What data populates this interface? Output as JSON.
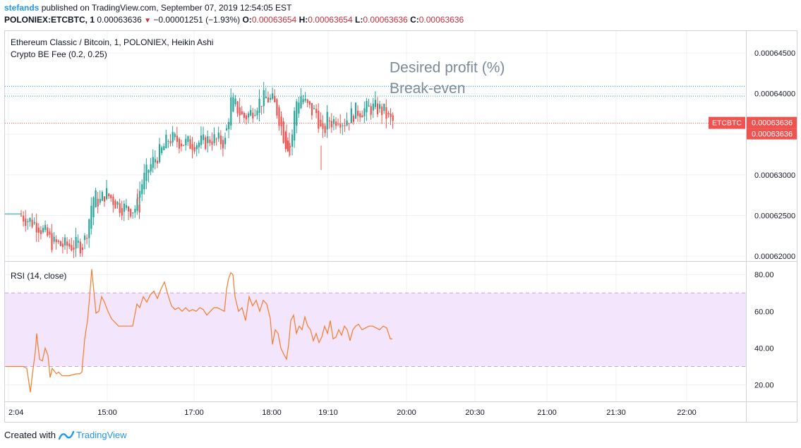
{
  "header": {
    "publisher": "stefands",
    "published_text": "published on TradingView.com, September 07, 2019 12:54:05 EST",
    "symbol": "POLONIEX:ETCBTC, 1",
    "last": "0.00063636",
    "change": "−0.00001251 (−1.93%)",
    "open_label": "O:",
    "open": "0.00063654",
    "high_label": "H:",
    "high": "0.00063654",
    "low_label": "L:",
    "low": "0.00063636",
    "close_label": "C:",
    "close": "0.00063636"
  },
  "legend": {
    "title": "Ethereum Classic / Bitcoin, 1, POLONIEX, Heikin Ashi",
    "indicator": "Crypto BE Fee (0.2, 0.25)",
    "rsi": "RSI (14, close)"
  },
  "annotations": {
    "desired_profit": "Desired profit (%)",
    "break_even": "Break-even"
  },
  "price_badges": [
    "ETCBTC",
    "0.00063636",
    "0.00063636"
  ],
  "footer": {
    "created_with": "Created with",
    "brand": "TradingView"
  },
  "colors": {
    "up": "#26a69a",
    "down": "#ef5350",
    "rsi_line": "#f57c2b",
    "rsi_band": "#f3e5fb",
    "desired_line": "#2196f3",
    "breakeven_line": "#26a69a",
    "price_line": "#ef5350",
    "grid": "#eef0f3"
  },
  "chart_data": [
    {
      "type": "candlestick",
      "style": "Heikin Ashi",
      "x_ticks": [
        "2:04",
        "15:00",
        "17:00",
        "18:00",
        "19:10",
        "20:00",
        "20:30",
        "21:00",
        "21:30",
        "22:00"
      ],
      "y_ticks": [
        "0.00062000",
        "0.00062500",
        "0.00063000",
        "0.00063500",
        "0.00064000",
        "0.00064500"
      ],
      "ylim": [
        0.0006194,
        0.0006477
      ],
      "desired_profit_level": 0.0006409,
      "break_even_level": 0.0006397,
      "last_price": 0.00063636,
      "series": [
        {
          "type": "flat",
          "from": 0,
          "to": 20,
          "value": 0.0006252,
          "color": "up"
        },
        {
          "type": "path",
          "from": 21,
          "to": 110,
          "color": "mixed",
          "points": [
            [
              21,
              0.000625
            ],
            [
              30,
              0.0006245
            ],
            [
              45,
              0.0006238
            ],
            [
              55,
              0.0006228
            ],
            [
              65,
              0.0006216
            ],
            [
              80,
              0.0006213
            ],
            [
              95,
              0.0006213
            ],
            [
              105,
              0.0006214
            ],
            [
              110,
              0.0006214
            ]
          ]
        },
        {
          "type": "path",
          "from": 111,
          "to": 190,
          "color": "mixed",
          "points": [
            [
              111,
              0.000622
            ],
            [
              116,
              0.000624
            ],
            [
              120,
              0.0006262
            ],
            [
              124,
              0.0006275
            ],
            [
              132,
              0.0006266
            ],
            [
              140,
              0.0006278
            ],
            [
              150,
              0.000627
            ],
            [
              160,
              0.0006262
            ],
            [
              170,
              0.0006258
            ],
            [
              180,
              0.0006258
            ],
            [
              186,
              0.0006262
            ]
          ]
        },
        {
          "type": "path",
          "from": 186,
          "to": 312,
          "color": "mixed",
          "points": [
            [
              186,
              0.0006272
            ],
            [
              192,
              0.000629
            ],
            [
              200,
              0.0006305
            ],
            [
              210,
              0.000632
            ],
            [
              220,
              0.000633
            ],
            [
              230,
              0.0006345
            ],
            [
              240,
              0.0006343
            ],
            [
              250,
              0.000634
            ],
            [
              260,
              0.0006338
            ],
            [
              270,
              0.000634
            ],
            [
              280,
              0.000634
            ],
            [
              290,
              0.0006345
            ],
            [
              300,
              0.0006342
            ],
            [
              312,
              0.000634
            ]
          ]
        },
        {
          "type": "path",
          "from": 312,
          "to": 550,
          "color": "mixed",
          "points": [
            [
              312,
              0.0006355
            ],
            [
              318,
              0.000639
            ],
            [
              325,
              0.0006385
            ],
            [
              335,
              0.000637
            ],
            [
              345,
              0.0006375
            ],
            [
              355,
              0.0006388
            ],
            [
              368,
              0.0006395
            ],
            [
              378,
              0.000639
            ],
            [
              385,
              0.0006375
            ],
            [
              395,
              0.000634
            ],
            [
              403,
              0.0006335
            ],
            [
              410,
              0.000639
            ],
            [
              418,
              0.0006398
            ],
            [
              425,
              0.0006385
            ],
            [
              433,
              0.0006378
            ],
            [
              440,
              0.0006376
            ],
            [
              448,
              0.0006345
            ],
            [
              455,
              0.000637
            ],
            [
              462,
              0.0006365
            ],
            [
              470,
              0.0006372
            ],
            [
              478,
              0.0006365
            ],
            [
              486,
              0.0006372
            ],
            [
              495,
              0.0006378
            ],
            [
              505,
              0.000638
            ],
            [
              515,
              0.0006382
            ],
            [
              525,
              0.0006382
            ],
            [
              535,
              0.0006378
            ],
            [
              542,
              0.0006368
            ],
            [
              550,
              0.0006364
            ]
          ]
        }
      ]
    },
    {
      "type": "line",
      "name": "RSI (14, close)",
      "y_ticks": [
        "20.00",
        "40.00",
        "60.00",
        "80.00"
      ],
      "ylim": [
        11,
        87
      ],
      "band": [
        30,
        70
      ],
      "x": [
        0,
        10,
        25,
        30,
        35,
        38,
        42,
        44,
        48,
        52,
        56,
        60,
        63,
        66,
        72,
        75,
        80,
        90,
        100,
        105,
        108,
        112,
        116,
        119,
        122,
        125,
        128,
        132,
        136,
        140,
        145,
        150,
        155,
        160,
        170,
        180,
        186,
        190,
        195,
        200,
        205,
        210,
        215,
        220,
        225,
        230,
        235,
        240,
        245,
        250,
        255,
        260,
        265,
        270,
        275,
        280,
        285,
        290,
        295,
        300,
        305,
        310,
        313,
        316,
        319,
        322,
        325,
        330,
        335,
        340,
        345,
        350,
        355,
        360,
        365,
        370,
        375,
        378,
        382,
        386,
        390,
        395,
        398,
        401,
        404,
        408,
        412,
        416,
        420,
        424,
        428,
        432,
        436,
        440,
        444,
        448,
        452,
        456,
        460,
        464,
        468,
        472,
        476,
        480,
        484,
        488,
        492,
        496,
        500,
        505,
        510,
        515,
        520,
        525,
        530,
        535,
        540,
        545,
        548
      ],
      "values": [
        30,
        30,
        30,
        29,
        16,
        26,
        38,
        48,
        34,
        33,
        40,
        36,
        24,
        29,
        26,
        27,
        25,
        25,
        26,
        26,
        27,
        45,
        55,
        68,
        83,
        71,
        59,
        60,
        68,
        65,
        60,
        56,
        54,
        52,
        52,
        52,
        64,
        62,
        68,
        65,
        69,
        71,
        67,
        72,
        76,
        69,
        63,
        61,
        62,
        60,
        62,
        60,
        61,
        60,
        62,
        61,
        58,
        60,
        62,
        62,
        61,
        60,
        72,
        78,
        81,
        80,
        68,
        60,
        62,
        55,
        68,
        63,
        66,
        60,
        66,
        64,
        56,
        42,
        50,
        48,
        40,
        36,
        34,
        42,
        55,
        58,
        48,
        52,
        50,
        57,
        52,
        50,
        44,
        48,
        43,
        46,
        52,
        48,
        55,
        45,
        46,
        50,
        47,
        52,
        50,
        44,
        50,
        52,
        53,
        50,
        51,
        52,
        52,
        51,
        50,
        52,
        51,
        45,
        45
      ]
    }
  ]
}
